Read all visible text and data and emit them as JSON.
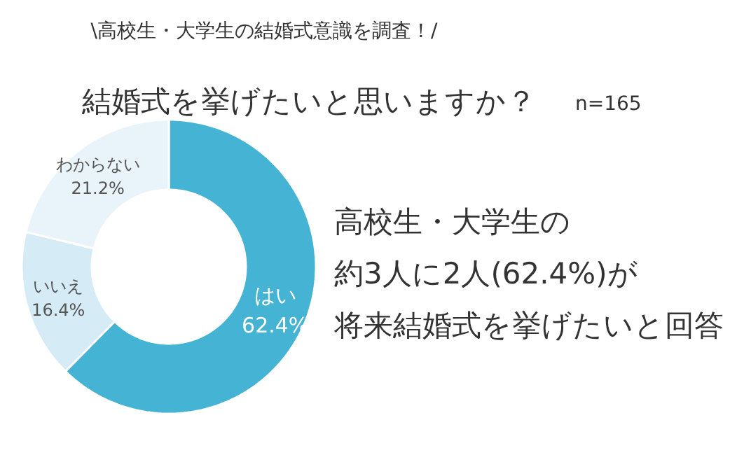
{
  "chart_data": {
    "type": "donut",
    "subtitle": "\\高校生・大学生の結婚式意識を調査！/",
    "title": "結婚式を挙げたいと思いますか？",
    "categories": [
      "はい",
      "いいえ",
      "わからない"
    ],
    "values": [
      62.4,
      16.4,
      21.2
    ],
    "value_labels": [
      "62.4%",
      "16.4%",
      "21.2%"
    ],
    "colors": [
      "#45b3d3",
      "#d5ebf6",
      "#e9f3fa"
    ],
    "annotations": [
      "n=165",
      "高校生・大学生の",
      "約3人に2人(62.4%)が",
      "将来結婚式を挙げたいと回答"
    ]
  }
}
